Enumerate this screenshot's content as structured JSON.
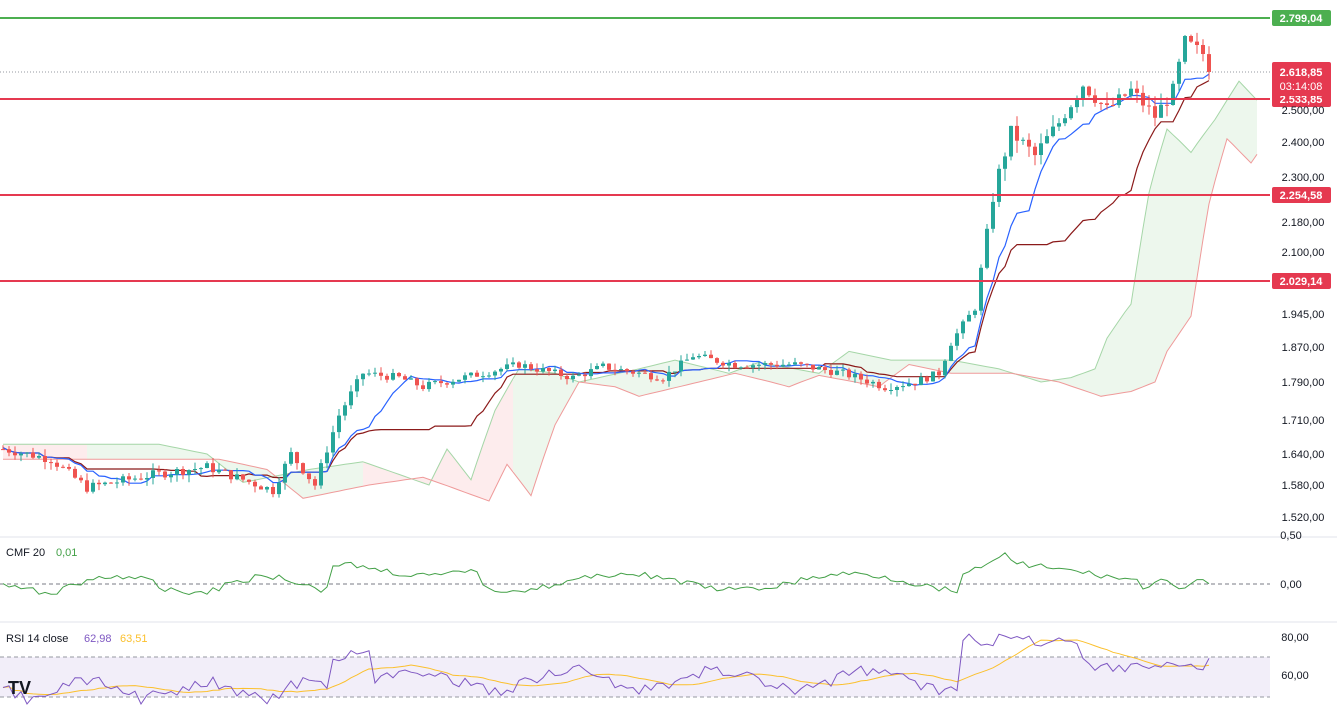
{
  "chart_data": [
    {
      "type": "candlestick",
      "name": "price",
      "y_axis_ticks": [
        "1.520,00",
        "1.580,00",
        "1.640,00",
        "1.710,00",
        "1.790,00",
        "1.870,00",
        "1.945,00",
        "2.100,00",
        "2.180,00",
        "2.300,00",
        "2.400,00",
        "2.500,00"
      ],
      "ylim": [
        1490,
        2840
      ],
      "horizontal_lines": [
        {
          "value": 2799.04,
          "label": "2.799,04",
          "color": "#4caf50"
        },
        {
          "value": 2533.85,
          "label": "2.533,85",
          "color": "#e53950"
        },
        {
          "value": 2254.58,
          "label": "2.254,58",
          "color": "#e53950"
        },
        {
          "value": 2029.14,
          "label": "2.029,14",
          "color": "#e53950"
        }
      ],
      "last_price": {
        "value": 2618.85,
        "label": "2.618,85",
        "countdown": "03:14:08",
        "color": "#e53950"
      }
    },
    {
      "type": "line",
      "name": "CMF",
      "indicator_label": "CMF 20",
      "indicator_value": "0,01",
      "y_axis_ticks": [
        "0,50",
        "0,00"
      ],
      "color": "#43a047"
    },
    {
      "type": "line",
      "name": "RSI",
      "indicator_label": "RSI 14 close",
      "indicator_value_1": "62,98",
      "indicator_value_2": "63,51",
      "y_axis_ticks": [
        "80,00",
        "60,00"
      ],
      "colors": [
        "#7e57c2",
        "#fbc02d"
      ]
    }
  ],
  "colors": {
    "up": "#26a69a",
    "down": "#ef5350",
    "tenkan": "#2962ff",
    "kijun": "#8b1a1a",
    "support_line": "#e53950",
    "resistance_line": "#4caf50",
    "cloud_up": "#e8f5e9",
    "cloud_down": "#fde7e9",
    "cmf": "#43a047",
    "rsi": "#7e57c2",
    "rsi_ma": "#fbc02d",
    "axis_text": "#131722"
  },
  "logo": "TV"
}
